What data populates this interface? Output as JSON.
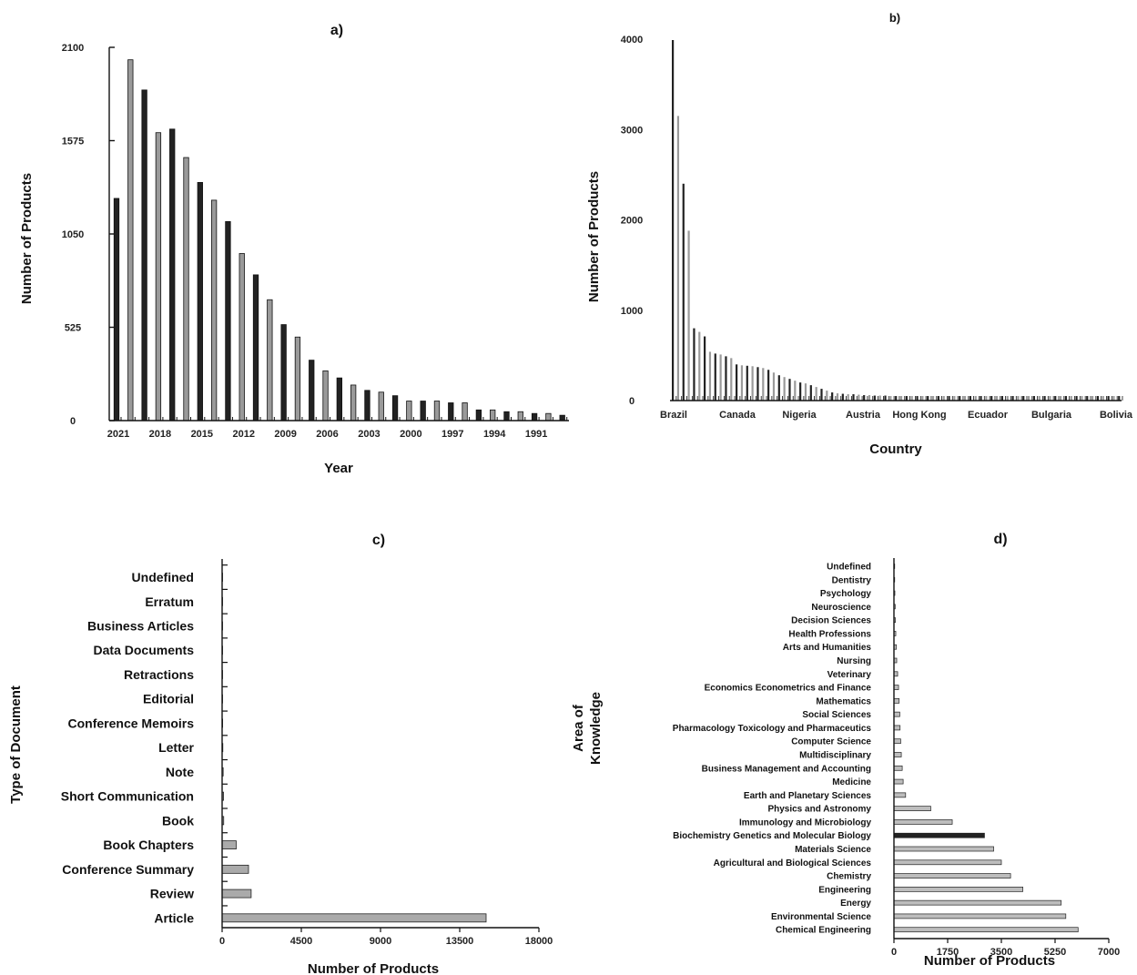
{
  "chart_data": [
    {
      "id": "a",
      "type": "bar",
      "title": "a)",
      "xlabel": "Year",
      "ylabel": "Number of Products",
      "ylim": [
        0,
        2100
      ],
      "yticks": [
        "2100",
        "1575",
        "1050",
        "525",
        "0"
      ],
      "xticks": [
        "2021",
        "2018",
        "2015",
        "2012",
        "2009",
        "2006",
        "2003",
        "2000",
        "1997",
        "1994",
        "1991"
      ],
      "x": [
        2021,
        2020,
        2019,
        2018,
        2017,
        2016,
        2015,
        2014,
        2013,
        2012,
        2011,
        2010,
        2009,
        2008,
        2007,
        2006,
        2005,
        2004,
        2003,
        2002,
        2001,
        2000,
        1999,
        1998,
        1997,
        1996,
        1995,
        1994,
        1993,
        1992,
        1991,
        1990,
        1989
      ],
      "values": [
        1250,
        2030,
        1860,
        1620,
        1640,
        1480,
        1340,
        1240,
        1120,
        940,
        820,
        680,
        540,
        470,
        340,
        280,
        240,
        200,
        170,
        160,
        140,
        110,
        110,
        110,
        100,
        100,
        60,
        60,
        50,
        50,
        40,
        40,
        30
      ],
      "colors": [
        "#222222",
        "#9a9a9a"
      ]
    },
    {
      "id": "b",
      "type": "bar",
      "title": "b)",
      "xlabel": "Country",
      "ylabel": "Number of Products",
      "ylim": [
        0,
        4000
      ],
      "yticks": [
        "4000",
        "3000",
        "2000",
        "1000",
        "0"
      ],
      "xticks": [
        "Brazil",
        "Canada",
        "Nigeria",
        "Austria",
        "Hong Kong",
        "Ecuador",
        "Bulgaria",
        "Bolivia"
      ],
      "values": [
        3990,
        3150,
        2400,
        1880,
        800,
        760,
        710,
        540,
        520,
        510,
        490,
        470,
        400,
        390,
        385,
        380,
        370,
        360,
        340,
        310,
        280,
        260,
        240,
        220,
        200,
        190,
        170,
        150,
        130,
        110,
        90,
        80,
        75,
        70,
        70,
        65,
        60,
        60,
        55,
        55,
        55,
        50,
        50,
        50,
        50,
        50,
        50,
        50,
        50,
        50,
        50,
        50,
        50,
        50,
        50,
        50,
        50,
        50,
        50,
        50,
        50,
        50,
        50,
        50,
        50,
        50,
        50,
        50,
        50,
        50,
        50,
        50,
        50,
        50,
        50,
        50,
        50,
        50,
        50,
        50,
        50,
        50,
        50,
        50,
        50
      ]
    },
    {
      "id": "c",
      "type": "bar",
      "orientation": "horizontal",
      "title": "c)",
      "xlabel": "Number of Products",
      "ylabel": "Type of Document",
      "xlim": [
        0,
        18000
      ],
      "xticks": [
        "0",
        "4500",
        "9000",
        "13500",
        "18000"
      ],
      "categories": [
        "Undefined",
        "Erratum",
        "Business Articles",
        "Data Documents",
        "Retractions",
        "Editorial",
        "Conference Memoirs",
        "Letter",
        "Note",
        "Short Communication",
        "Book",
        "Book Chapters",
        "Conference Summary",
        "Review",
        "Article"
      ],
      "values": [
        5,
        5,
        5,
        10,
        10,
        20,
        30,
        40,
        60,
        80,
        90,
        800,
        1500,
        1650,
        15000
      ]
    },
    {
      "id": "d",
      "type": "bar",
      "orientation": "horizontal",
      "title": "d)",
      "xlabel": "Number of Products",
      "ylabel": "Area of Knowledge",
      "xlim": [
        0,
        7000
      ],
      "xticks": [
        "0",
        "1750",
        "3500",
        "5250",
        "7000"
      ],
      "categories": [
        "Undefined",
        "Dentistry",
        "Psychology",
        "Neuroscience",
        "Decision Sciences",
        "Health Professions",
        "Arts and Humanities",
        "Nursing",
        "Veterinary",
        "Economics  Econometrics and Finance",
        "Mathematics",
        "Social Sciences",
        "Pharmacology Toxicology and Pharmaceutics",
        "Computer Science",
        "Multidisciplinary",
        "Business  Management and Accounting",
        "Medicine",
        "Earth and Planetary Sciences",
        "Physics and Astronomy",
        "Immunology and Microbiology",
        "Biochemistry  Genetics and Molecular Biology",
        "Materials Science",
        "Agricultural and Biological Sciences",
        "Chemistry",
        "Engineering",
        "Energy",
        "Environmental Science",
        "Chemical Engineering"
      ],
      "values": [
        10,
        20,
        30,
        40,
        50,
        60,
        80,
        90,
        120,
        150,
        170,
        190,
        200,
        220,
        240,
        270,
        300,
        380,
        1200,
        1900,
        2950,
        3250,
        3500,
        3800,
        4200,
        5450,
        5600,
        6000
      ]
    }
  ]
}
